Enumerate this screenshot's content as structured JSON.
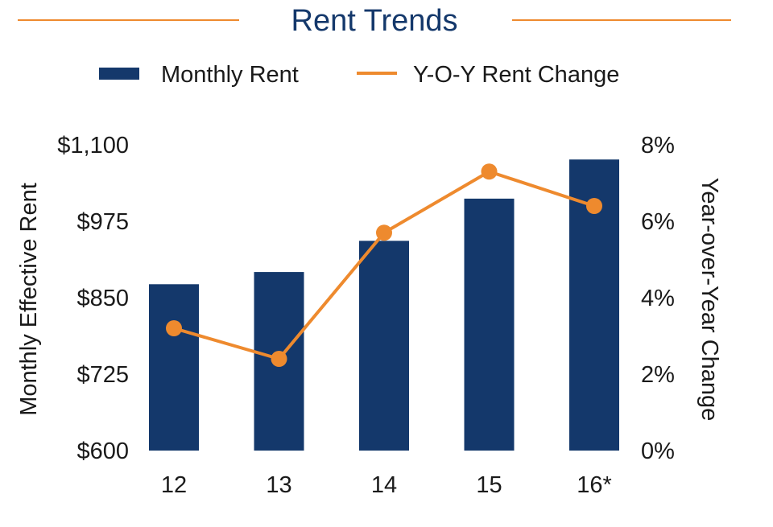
{
  "chart_data": {
    "type": "bar",
    "title": "Rent Trends",
    "categories": [
      "12",
      "13",
      "14",
      "15",
      "16*"
    ],
    "series": [
      {
        "name": "Monthly Rent",
        "type": "bar",
        "axis": "left",
        "values": [
          872,
          892,
          943,
          1012,
          1076
        ]
      },
      {
        "name": "Y-O-Y Rent Change",
        "type": "line",
        "axis": "right",
        "values": [
          3.2,
          2.4,
          5.7,
          7.3,
          6.4
        ]
      }
    ],
    "ylabel": "Monthly Effective Rent",
    "y2label": "Year-over-Year Change",
    "ylim": [
      600,
      1100
    ],
    "y2lim": [
      0,
      8
    ],
    "yticks": [
      "$600",
      "$725",
      "$850",
      "$975",
      "$1,100"
    ],
    "ytick_values": [
      600,
      725,
      850,
      975,
      1100
    ],
    "y2ticks": [
      "0%",
      "2%",
      "4%",
      "6%",
      "8%"
    ],
    "y2tick_values": [
      0,
      2,
      4,
      6,
      8
    ],
    "grid": false,
    "legend": "top-center",
    "colors": {
      "bar": "#14386b",
      "line": "#ee8a2e",
      "title": "#14386b",
      "rule": "#ee8a2e"
    }
  }
}
